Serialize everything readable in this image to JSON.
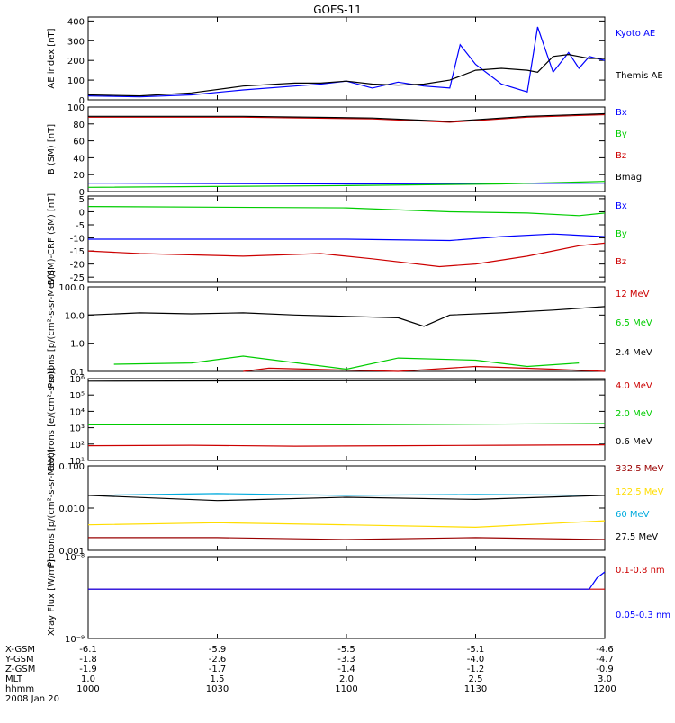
{
  "title": "GOES-11",
  "chart_data": [
    {
      "type": "line",
      "ylabel": "AE index [nT]",
      "yscale": "linear",
      "ylim": [
        0,
        420
      ],
      "ytick_values": [
        0,
        100,
        200,
        300,
        400
      ],
      "ytick_labels": [
        "0",
        "100",
        "200",
        "300",
        "400"
      ],
      "series": [
        {
          "name": "Kyoto AE",
          "color": "#0000ff",
          "x": [
            0,
            0.1,
            0.2,
            0.3,
            0.4,
            0.45,
            0.5,
            0.55,
            0.6,
            0.65,
            0.7,
            0.72,
            0.75,
            0.8,
            0.85,
            0.87,
            0.9,
            0.93,
            0.95,
            0.97,
            1.0
          ],
          "y": [
            20,
            15,
            25,
            50,
            70,
            80,
            95,
            60,
            90,
            70,
            60,
            280,
            180,
            80,
            40,
            370,
            140,
            240,
            160,
            220,
            200
          ]
        },
        {
          "name": "Themis AE",
          "color": "#000000",
          "x": [
            0,
            0.1,
            0.2,
            0.3,
            0.4,
            0.45,
            0.5,
            0.55,
            0.6,
            0.65,
            0.7,
            0.75,
            0.8,
            0.85,
            0.87,
            0.9,
            0.93,
            0.95,
            0.97,
            1.0
          ],
          "y": [
            25,
            20,
            35,
            70,
            85,
            85,
            95,
            80,
            75,
            80,
            100,
            150,
            160,
            150,
            140,
            220,
            230,
            220,
            210,
            210
          ]
        }
      ]
    },
    {
      "type": "line",
      "ylabel": "B (SM) [nT]",
      "yscale": "linear",
      "ylim": [
        0,
        100
      ],
      "ytick_values": [
        0,
        20,
        40,
        60,
        80,
        100
      ],
      "ytick_labels": [
        "0",
        "20",
        "40",
        "60",
        "80",
        "100"
      ],
      "series": [
        {
          "name": "Bx",
          "color": "#0000ff",
          "x": [
            0,
            0.5,
            1
          ],
          "y": [
            10,
            9,
            10
          ]
        },
        {
          "name": "By",
          "color": "#00cc00",
          "x": [
            0,
            0.5,
            0.8,
            1
          ],
          "y": [
            5,
            7,
            9,
            12
          ]
        },
        {
          "name": "Bz",
          "color": "#cc0000",
          "x": [
            0,
            0.3,
            0.55,
            0.7,
            0.85,
            1
          ],
          "y": [
            88,
            88,
            86,
            82,
            88,
            91
          ]
        },
        {
          "name": "Bmag",
          "color": "#000000",
          "x": [
            0,
            0.3,
            0.55,
            0.7,
            0.85,
            1
          ],
          "y": [
            89,
            89,
            87,
            83,
            89,
            92
          ]
        }
      ]
    },
    {
      "type": "line",
      "ylabel": "B(SM)-CRF (SM) [nT]",
      "yscale": "linear",
      "ylim": [
        -27,
        6
      ],
      "ytick_values": [
        5,
        0,
        -5,
        -10,
        -15,
        -20,
        -25
      ],
      "ytick_labels": [
        "5",
        "0",
        "-5",
        "-10",
        "-15",
        "-20",
        "-25"
      ],
      "series": [
        {
          "name": "Bx",
          "color": "#0000ff",
          "x": [
            0,
            0.3,
            0.5,
            0.7,
            0.8,
            0.9,
            1
          ],
          "y": [
            -10.5,
            -10.5,
            -10.5,
            -11,
            -9.5,
            -8.5,
            -9.5
          ]
        },
        {
          "name": "By",
          "color": "#00cc00",
          "x": [
            0,
            0.5,
            0.7,
            0.85,
            0.95,
            1
          ],
          "y": [
            2,
            1.5,
            0,
            -0.5,
            -1.5,
            -0.5
          ]
        },
        {
          "name": "Bz",
          "color": "#cc0000",
          "x": [
            0,
            0.1,
            0.3,
            0.45,
            0.55,
            0.68,
            0.75,
            0.85,
            0.95,
            1
          ],
          "y": [
            -15,
            -16,
            -17,
            -16,
            -18,
            -21,
            -20,
            -17,
            -13,
            -12
          ]
        }
      ]
    },
    {
      "type": "line",
      "ylabel": "Protons [p/(cm²-s-sr-MeV)]",
      "yscale": "log",
      "ylim": [
        0.1,
        100
      ],
      "ytick_values": [
        100,
        10,
        1,
        0.1
      ],
      "ytick_labels": [
        "100.0",
        "10.0",
        "1.0",
        "0.1"
      ],
      "series": [
        {
          "name": "12 MeV",
          "color": "#cc0000",
          "x": [
            0.3,
            0.35,
            0.6,
            0.75,
            0.9,
            1.0
          ],
          "y": [
            0.1,
            0.13,
            0.1,
            0.15,
            0.12,
            0.1
          ]
        },
        {
          "name": "6.5 MeV",
          "color": "#00cc00",
          "x": [
            0.05,
            0.2,
            0.3,
            0.5,
            0.6,
            0.75,
            0.85,
            0.95
          ],
          "y": [
            0.18,
            0.2,
            0.35,
            0.12,
            0.3,
            0.25,
            0.15,
            0.2
          ]
        },
        {
          "name": "2.4 MeV",
          "color": "#000000",
          "x": [
            0,
            0.1,
            0.2,
            0.3,
            0.4,
            0.5,
            0.6,
            0.65,
            0.7,
            0.8,
            0.9,
            1.0
          ],
          "y": [
            10,
            12,
            11,
            12,
            10,
            9,
            8,
            4,
            10,
            12,
            15,
            20
          ]
        }
      ]
    },
    {
      "type": "line",
      "ylabel": "Electrons [e/(cm²-s-sr)]",
      "yscale": "log",
      "ylim": [
        10,
        1000000
      ],
      "ytick_values": [
        1000000,
        100000,
        10000,
        1000,
        100,
        10
      ],
      "ytick_labels": [
        "10⁶",
        "10⁵",
        "10⁴",
        "10³",
        "10²",
        "10¹"
      ],
      "series": [
        {
          "name": "4.0 MeV",
          "color": "#cc0000",
          "x": [
            0,
            0.2,
            0.4,
            0.6,
            0.8,
            1.0
          ],
          "y": [
            80,
            85,
            75,
            80,
            85,
            90
          ]
        },
        {
          "name": "2.0 MeV",
          "color": "#00cc00",
          "x": [
            0,
            0.5,
            1.0
          ],
          "y": [
            1500,
            1500,
            1800
          ]
        },
        {
          "name": "0.6 MeV",
          "color": "#000000",
          "x": [
            0,
            0.5,
            1.0
          ],
          "y": [
            700000,
            750000,
            800000
          ]
        }
      ]
    },
    {
      "type": "line",
      "ylabel": "Protons [p/(cm²-s-sr-MeV)]",
      "yscale": "log",
      "ylim": [
        0.001,
        0.1
      ],
      "ytick_values": [
        0.1,
        0.01,
        0.001
      ],
      "ytick_labels": [
        "0.100",
        "0.010",
        "0.001"
      ],
      "series": [
        {
          "name": "332.5 MeV",
          "color": "#990000",
          "x": [
            0,
            0.25,
            0.5,
            0.75,
            1.0
          ],
          "y": [
            0.002,
            0.002,
            0.0018,
            0.002,
            0.0018
          ]
        },
        {
          "name": "122.5 MeV",
          "color": "#ffdd00",
          "x": [
            0,
            0.25,
            0.5,
            0.75,
            1.0
          ],
          "y": [
            0.004,
            0.0045,
            0.004,
            0.0035,
            0.005
          ]
        },
        {
          "name": "60 MeV",
          "color": "#00aadd",
          "x": [
            0,
            0.25,
            0.5,
            0.75,
            1.0
          ],
          "y": [
            0.02,
            0.022,
            0.02,
            0.021,
            0.02
          ]
        },
        {
          "name": "27.5 MeV",
          "color": "#000000",
          "x": [
            0,
            0.25,
            0.5,
            0.75,
            1.0
          ],
          "y": [
            0.02,
            0.015,
            0.018,
            0.016,
            0.02
          ]
        }
      ]
    },
    {
      "type": "line",
      "ylabel": "Xray Flux [W/m²]",
      "yscale": "log",
      "ylim": [
        1e-09,
        1e-08
      ],
      "ytick_values": [
        1e-08,
        1e-09
      ],
      "ytick_labels": [
        "10⁻⁸",
        "10⁻⁹"
      ],
      "series": [
        {
          "name": "0.1-0.8 nm",
          "color": "#cc0000",
          "x": [
            0,
            0.975,
            1.0
          ],
          "y": [
            4e-09,
            4e-09,
            4e-09
          ]
        },
        {
          "name": "0.05-0.3 nm",
          "color": "#0000ff",
          "x": [
            0,
            0.97,
            0.985,
            1.0
          ],
          "y": [
            4e-09,
            4e-09,
            5.5e-09,
            6.5e-09
          ]
        }
      ]
    }
  ],
  "x_axis": {
    "tick_positions": [
      0,
      0.25,
      0.5,
      0.75,
      1.0
    ],
    "rows": [
      {
        "label": "X-GSM",
        "values": [
          "-6.1",
          "-5.9",
          "-5.5",
          "-5.1",
          "-4.6"
        ]
      },
      {
        "label": "Y-GSM",
        "values": [
          "-1.8",
          "-2.6",
          "-3.3",
          "-4.0",
          "-4.7"
        ]
      },
      {
        "label": "Z-GSM",
        "values": [
          "-1.9",
          "-1.7",
          "-1.4",
          "-1.2",
          "-0.9"
        ]
      },
      {
        "label": "MLT",
        "values": [
          "1.0",
          "1.5",
          "2.0",
          "2.5",
          "3.0"
        ]
      },
      {
        "label": "hhmm",
        "values": [
          "1000",
          "1030",
          "1100",
          "1130",
          "1200"
        ]
      }
    ],
    "date": "2008 Jan 20"
  }
}
